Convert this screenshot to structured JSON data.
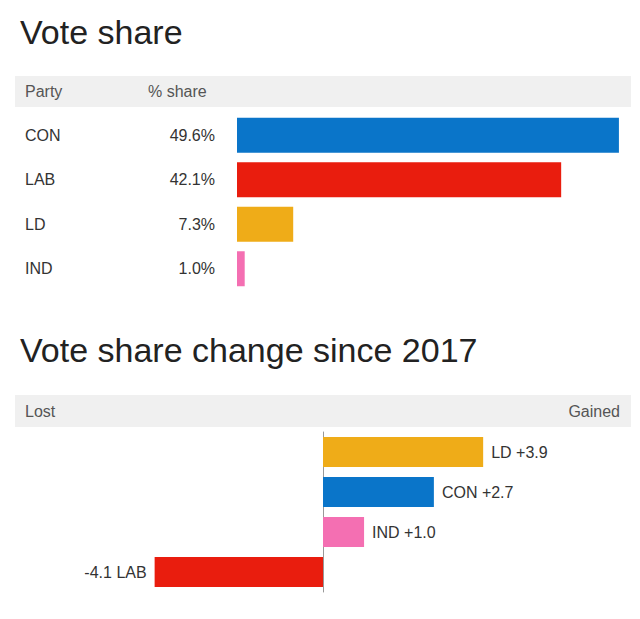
{
  "chart_data": [
    {
      "type": "bar",
      "title": "Vote share",
      "orientation": "horizontal",
      "ylabel": "Party",
      "xlabel": "% share",
      "categories": [
        "CON",
        "LAB",
        "LD",
        "IND"
      ],
      "values": [
        49.6,
        42.1,
        7.3,
        1.0
      ],
      "value_labels": [
        "49.6%",
        "42.1%",
        "7.3%",
        "1.0%"
      ],
      "colors": [
        "#0a75c9",
        "#e91d0e",
        "#efac18",
        "#f46fb2"
      ],
      "xlim": [
        0,
        50
      ],
      "data_labels": true,
      "tick_labels": "y",
      "grid": false
    },
    {
      "type": "bar",
      "title": "Vote share change since 2017",
      "orientation": "horizontal",
      "annotations": [
        "Lost",
        "Gained"
      ],
      "categories": [
        "LD",
        "CON",
        "IND",
        "LAB"
      ],
      "values": [
        3.9,
        2.7,
        1.0,
        -4.1
      ],
      "value_labels": [
        "+3.9",
        "+2.7",
        "+1.0",
        "-4.1"
      ],
      "colors": [
        "#efac18",
        "#0a75c9",
        "#f46fb2",
        "#e91d0e"
      ],
      "xlim": [
        -7.5,
        7.5
      ],
      "data_labels": true,
      "tick_labels": false,
      "grid": false
    }
  ]
}
